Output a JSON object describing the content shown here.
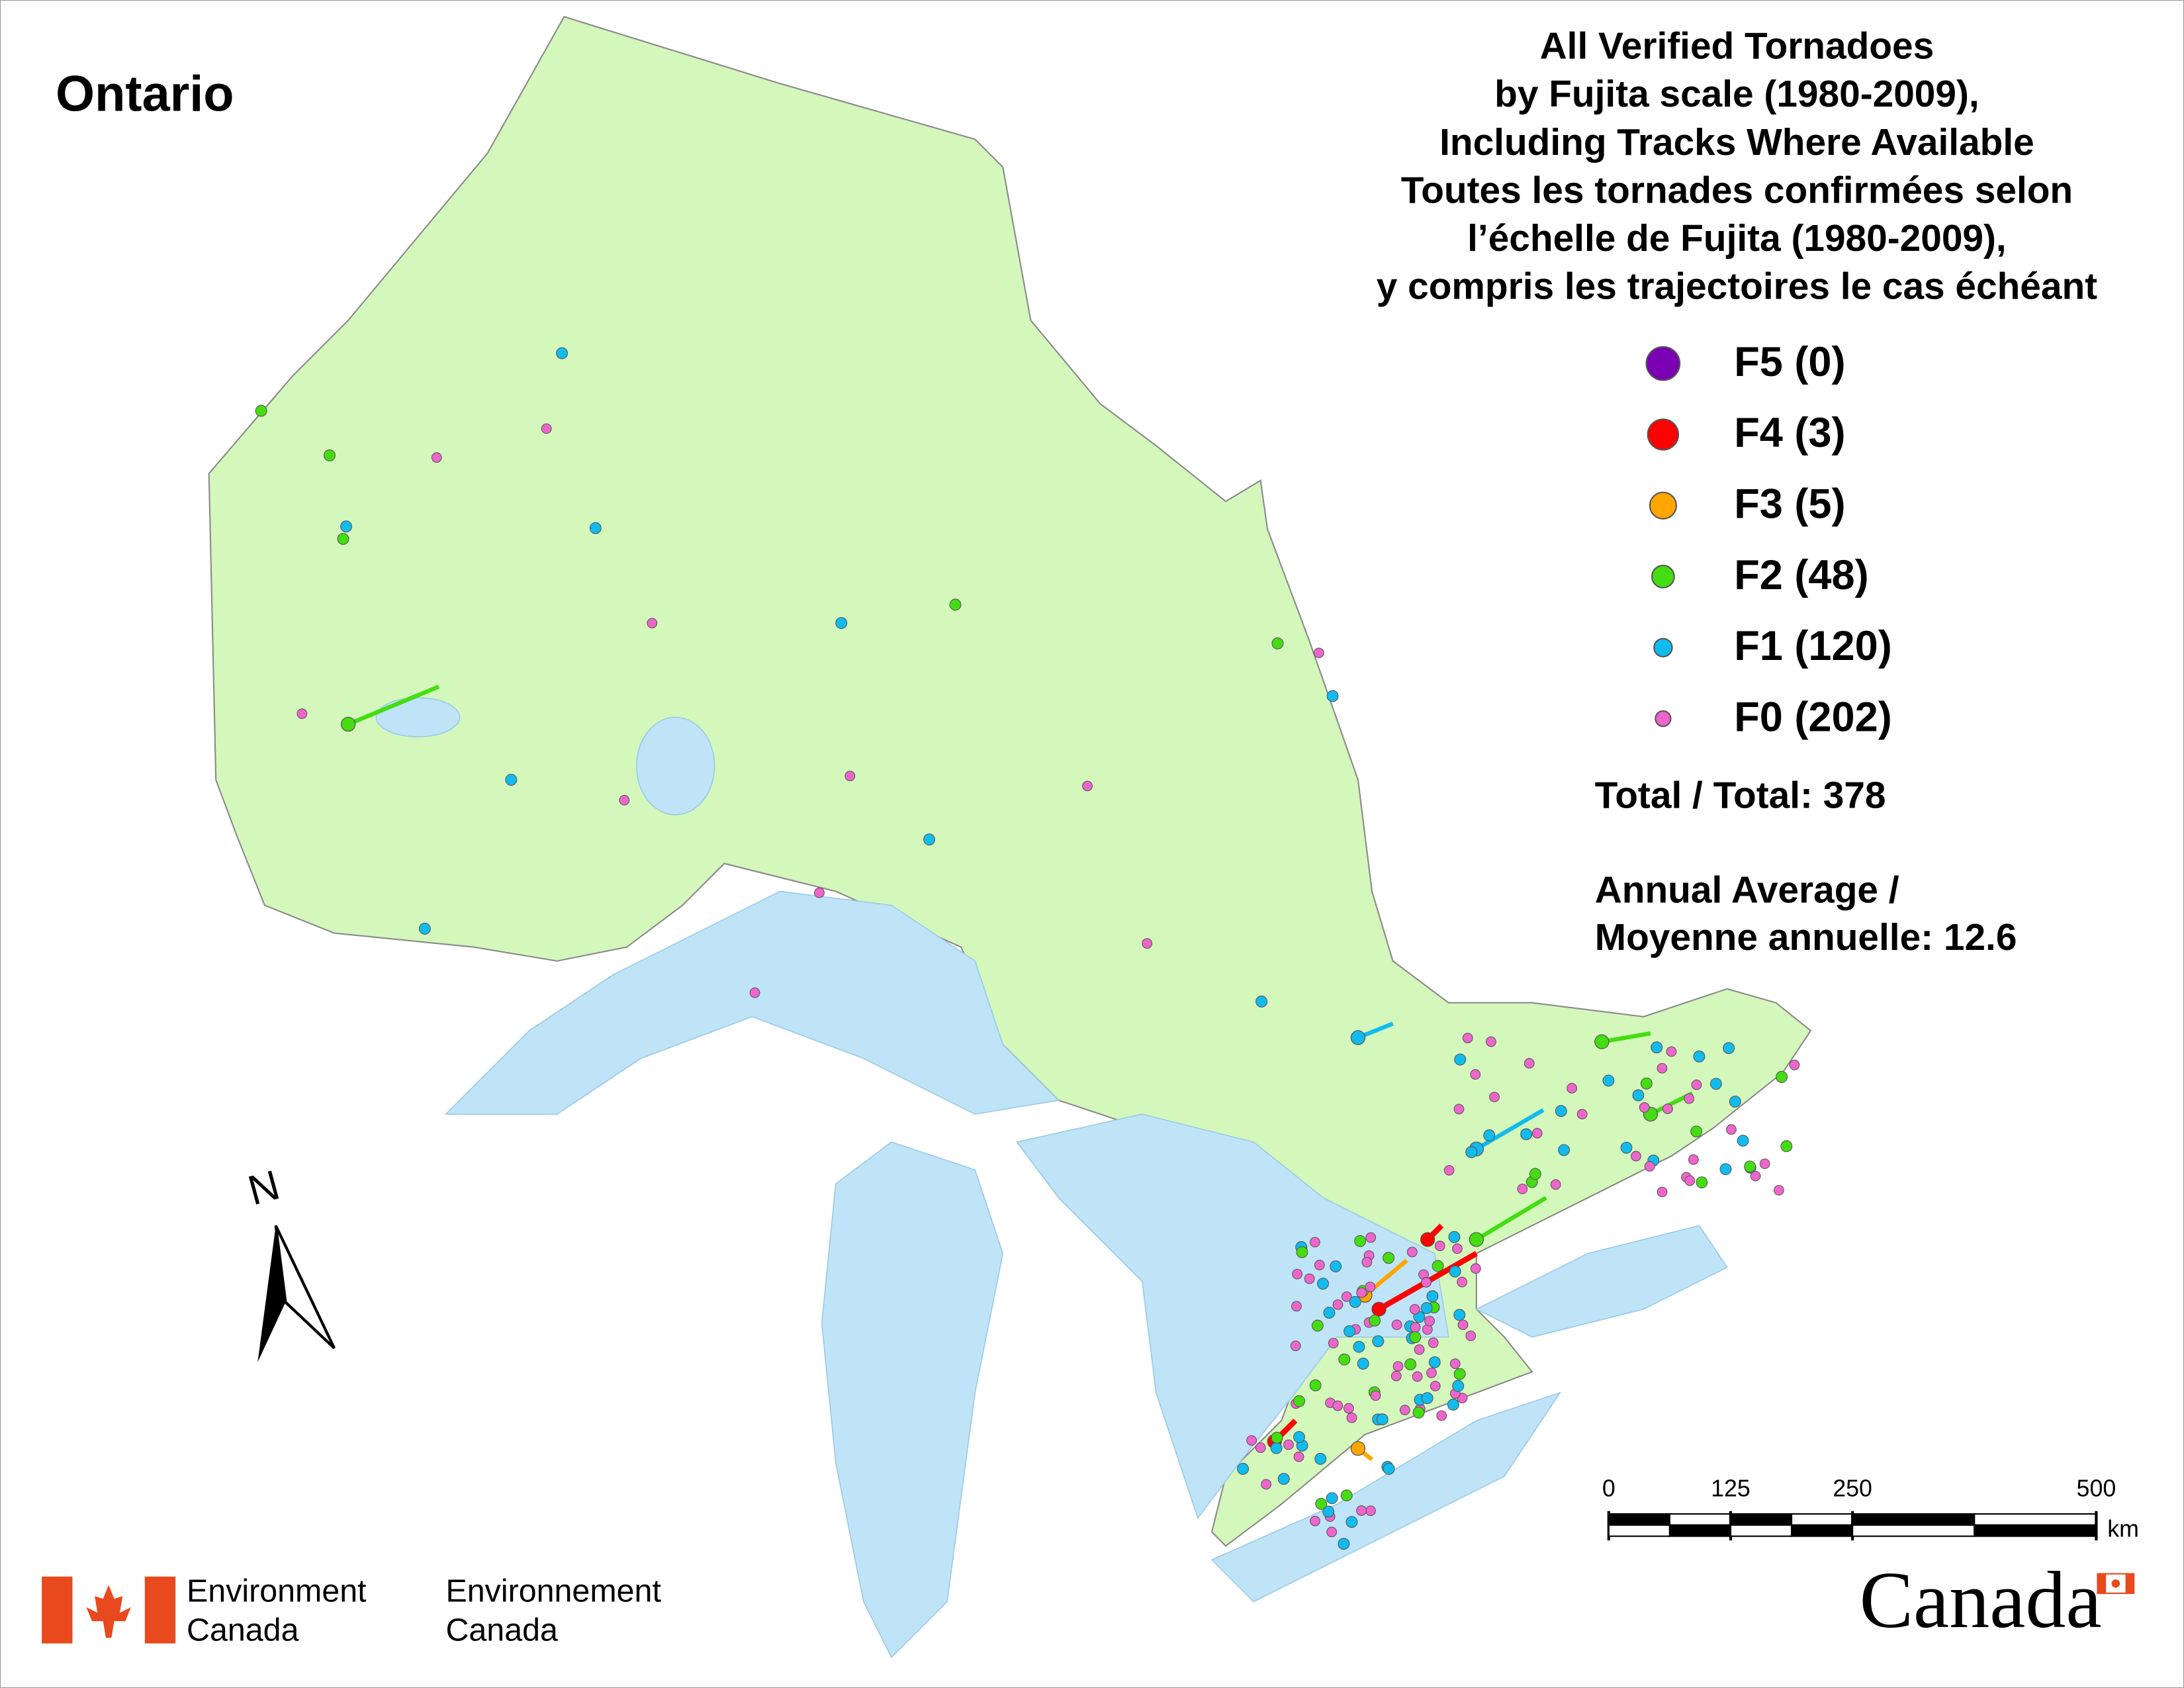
{
  "region": "Ontario",
  "title": [
    "All Verified Tornadoes",
    "by Fujita scale (1980-2009),",
    "Including Tracks Where Available",
    "Toutes les tornades confirmées selon",
    "l’échelle de Fujita (1980-2009),",
    "y compris les trajectoires le cas échéant"
  ],
  "legend": [
    {
      "label": "F5 (0)",
      "color": "#7b00b4"
    },
    {
      "label": "F4 (3)",
      "color": "#ff0000"
    },
    {
      "label": "F3 (5)",
      "color": "#ffa500"
    },
    {
      "label": "F2 (48)",
      "color": "#44dd11"
    },
    {
      "label": "F1 (120)",
      "color": "#11bbee"
    },
    {
      "label": "F0 (202)",
      "color": "#ee66cc"
    }
  ],
  "total": "Total / Total: 378",
  "annual_average": [
    "Annual Average /",
    "Moyenne annuelle: 12.6"
  ],
  "north": "N",
  "scale_bar": {
    "ticks": [
      0,
      125,
      250,
      500
    ],
    "unit": "km"
  },
  "footer": {
    "org_en": [
      "Environment",
      "Canada"
    ],
    "org_fr": [
      "Environnement",
      "Canada"
    ],
    "wordmark": "Canada"
  }
}
